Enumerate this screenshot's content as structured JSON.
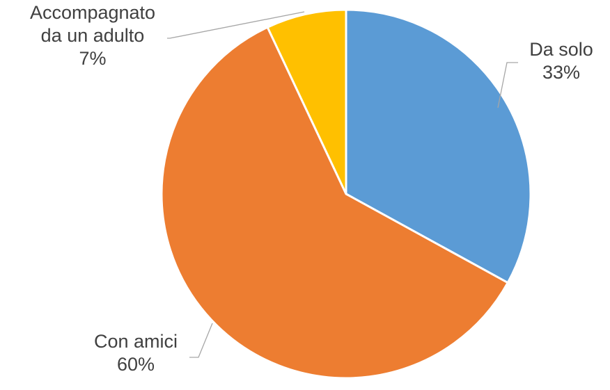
{
  "chart_data": {
    "type": "pie",
    "title": "",
    "start_angle_deg": 0,
    "direction": "clockwise",
    "legend": "none",
    "slices": [
      {
        "label_lines": [
          "Da solo"
        ],
        "value": 33,
        "value_label": "33%",
        "color": "#5B9BD5"
      },
      {
        "label_lines": [
          "Con amici"
        ],
        "value": 60,
        "value_label": "60%",
        "color": "#ED7D31"
      },
      {
        "label_lines": [
          "Accompagnato",
          "da un adulto"
        ],
        "value": 7,
        "value_label": "7%",
        "color": "#FFC000"
      }
    ]
  }
}
